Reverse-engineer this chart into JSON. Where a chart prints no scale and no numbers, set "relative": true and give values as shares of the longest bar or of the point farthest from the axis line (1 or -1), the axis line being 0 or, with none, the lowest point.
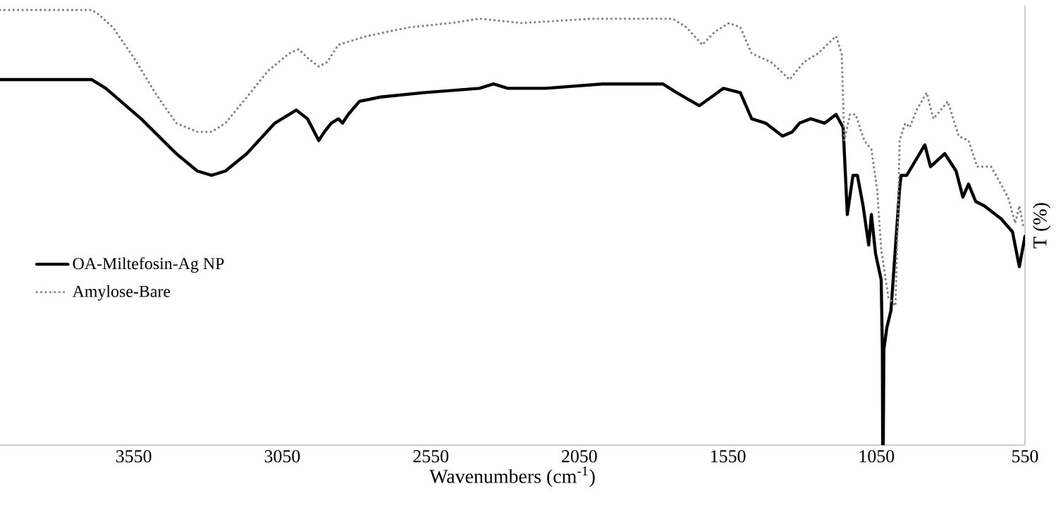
{
  "chart_data": {
    "type": "line",
    "relative": true,
    "xlabel": "Wavenumbers (cm$^{-1}$)",
    "ylabel": "T (%)",
    "xlim": [
      4000,
      550
    ],
    "xticks": [
      3550,
      3050,
      2550,
      2050,
      1550,
      1050,
      550
    ],
    "grid": false,
    "legend": "left",
    "marker": "none",
    "series": [
      {
        "name": "OA-Miltefosin-Ag NP",
        "color": "#000000",
        "line_style": "solid",
        "x": [
          4000,
          3691,
          3644,
          3525,
          3407,
          3336,
          3288,
          3241,
          3169,
          3075,
          3003,
          2965,
          2927,
          2908,
          2885,
          2861,
          2847,
          2828,
          2790,
          2719,
          2576,
          2386,
          2339,
          2291,
          2244,
          2163,
          1973,
          1769,
          1722,
          1646,
          1565,
          1508,
          1470,
          1423,
          1366,
          1333,
          1309,
          1271,
          1224,
          1186,
          1162,
          1148,
          1129,
          1114,
          1095,
          1076,
          1067,
          1053,
          1034,
          1030,
          1029,
          1027,
          1025,
          1015,
          1001,
          972,
          967,
          948,
          887,
          868,
          820,
          782,
          759,
          740,
          716,
          687,
          630,
          592,
          569,
          550
        ],
        "values": [
          0.84,
          0.84,
          0.82,
          0.75,
          0.67,
          0.63,
          0.62,
          0.63,
          0.67,
          0.74,
          0.77,
          0.75,
          0.7,
          0.72,
          0.74,
          0.75,
          0.74,
          0.76,
          0.79,
          0.8,
          0.81,
          0.82,
          0.83,
          0.82,
          0.82,
          0.82,
          0.83,
          0.83,
          0.81,
          0.78,
          0.82,
          0.81,
          0.75,
          0.74,
          0.71,
          0.72,
          0.74,
          0.75,
          0.74,
          0.76,
          0.73,
          0.53,
          0.62,
          0.62,
          0.55,
          0.46,
          0.53,
          0.44,
          0.38,
          0.22,
          0,
          0,
          0.22,
          0.27,
          0.31,
          0.59,
          0.62,
          0.62,
          0.69,
          0.64,
          0.67,
          0.63,
          0.57,
          0.6,
          0.56,
          0.55,
          0.52,
          0.49,
          0.41,
          0.48
        ]
      },
      {
        "name": "Amylose-Bare",
        "color": "#808080",
        "line_style": "dotted",
        "x": [
          4000,
          3691,
          3668,
          3620,
          3549,
          3478,
          3407,
          3336,
          3288,
          3241,
          3169,
          3098,
          3027,
          2994,
          2965,
          2927,
          2899,
          2861,
          2766,
          2624,
          2481,
          2386,
          2244,
          2007,
          1817,
          1736,
          1689,
          1636,
          1594,
          1546,
          1508,
          1470,
          1404,
          1342,
          1295,
          1247,
          1186,
          1167,
          1158,
          1139,
          1120,
          1091,
          1067,
          1048,
          1034,
          1010,
          986,
          977,
          972,
          953,
          938,
          915,
          881,
          858,
          810,
          773,
          740,
          711,
          664,
          607,
          583,
          569,
          555
        ],
        "values": [
          1.0,
          1.0,
          0.99,
          0.96,
          0.89,
          0.81,
          0.74,
          0.72,
          0.72,
          0.74,
          0.8,
          0.86,
          0.9,
          0.91,
          0.89,
          0.87,
          0.88,
          0.92,
          0.94,
          0.96,
          0.97,
          0.98,
          0.97,
          0.98,
          0.98,
          0.98,
          0.96,
          0.92,
          0.95,
          0.97,
          0.96,
          0.9,
          0.88,
          0.84,
          0.88,
          0.9,
          0.94,
          0.9,
          0.7,
          0.76,
          0.76,
          0.7,
          0.68,
          0.59,
          0.45,
          0.34,
          0.32,
          0.54,
          0.7,
          0.74,
          0.73,
          0.77,
          0.81,
          0.75,
          0.79,
          0.71,
          0.7,
          0.64,
          0.64,
          0.57,
          0.51,
          0.55,
          0.5
        ]
      }
    ]
  }
}
